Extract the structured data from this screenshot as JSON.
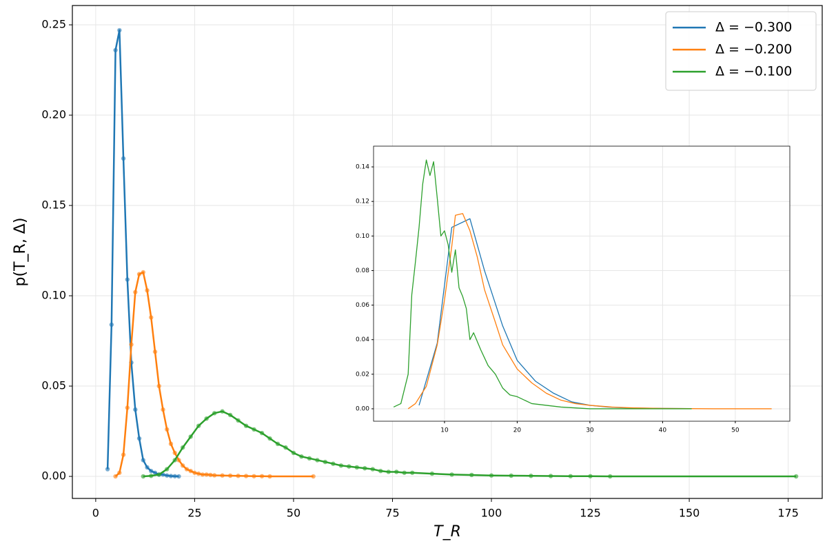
{
  "chart_data": [
    {
      "type": "line",
      "xlabel": "T_R",
      "ylabel": "p(T_R, Δ)",
      "xlim": [
        -5.9,
        183.6
      ],
      "ylim": [
        -0.0122,
        0.2607
      ],
      "xticks": [
        0,
        25,
        50,
        75,
        100,
        125,
        150,
        175
      ],
      "yticks": [
        {
          "value": 0,
          "label": "0.00"
        },
        0.05,
        {
          "value": 0.1,
          "label": "0.10"
        },
        0.15,
        {
          "value": 0.2,
          "label": "0.20"
        },
        0.25
      ],
      "grid": true,
      "markers": true,
      "legend": "upper right",
      "series": [
        {
          "name": "Δ = −0.300",
          "color": "#1f77b4",
          "x": [
            3,
            4,
            5,
            6,
            7,
            8,
            9,
            10,
            11,
            12,
            13,
            14,
            15,
            16,
            17,
            18,
            19,
            20,
            21
          ],
          "values": [
            0.004,
            0.084,
            0.236,
            0.247,
            0.176,
            0.109,
            0.063,
            0.037,
            0.021,
            0.009,
            0.005,
            0.003,
            0.002,
            0.001,
            0.001,
            0.0005,
            0.0002,
            0.0001,
            0
          ]
        },
        {
          "name": "Δ = −0.200",
          "color": "#ff7f0e",
          "x": [
            5,
            6,
            7,
            8,
            9,
            10,
            11,
            12,
            13,
            14,
            15,
            16,
            17,
            18,
            19,
            20,
            21,
            22,
            23,
            24,
            25,
            26,
            27,
            28,
            29,
            30,
            32,
            34,
            36,
            38,
            40,
            42,
            44,
            55
          ],
          "values": [
            0,
            0.002,
            0.012,
            0.038,
            0.073,
            0.102,
            0.112,
            0.113,
            0.103,
            0.088,
            0.069,
            0.05,
            0.037,
            0.026,
            0.018,
            0.013,
            0.009,
            0.006,
            0.004,
            0.003,
            0.002,
            0.0015,
            0.001,
            0.001,
            0.0008,
            0.0006,
            0.0005,
            0.0004,
            0.0003,
            0.0002,
            0.0001,
            0.0001,
            0,
            0
          ]
        },
        {
          "name": "Δ = −0.100",
          "color": "#2ca02c",
          "x": [
            12,
            14,
            16,
            18,
            20,
            22,
            24,
            26,
            28,
            30,
            32,
            34,
            36,
            38,
            40,
            42,
            44,
            46,
            48,
            50,
            52,
            54,
            56,
            58,
            60,
            62,
            64,
            66,
            68,
            70,
            72,
            74,
            76,
            78,
            80,
            85,
            90,
            95,
            100,
            105,
            110,
            115,
            120,
            125,
            130,
            177
          ],
          "values": [
            0,
            0.0003,
            0.001,
            0.004,
            0.009,
            0.016,
            0.022,
            0.028,
            0.032,
            0.035,
            0.036,
            0.034,
            0.031,
            0.028,
            0.026,
            0.024,
            0.021,
            0.018,
            0.016,
            0.013,
            0.011,
            0.01,
            0.009,
            0.008,
            0.007,
            0.006,
            0.0055,
            0.005,
            0.0045,
            0.004,
            0.003,
            0.0025,
            0.0025,
            0.002,
            0.002,
            0.0015,
            0.001,
            0.0008,
            0.0005,
            0.0004,
            0.0003,
            0.0002,
            0.0001,
            0.0001,
            0,
            0
          ]
        }
      ]
    },
    {
      "type": "line",
      "xlim": [
        0.24,
        57.5
      ],
      "ylim": [
        -0.0072,
        0.152
      ],
      "xticks": [
        10,
        20,
        30,
        40,
        50
      ],
      "yticks": [
        {
          "value": 0,
          "label": "0.00"
        },
        0.02,
        0.04,
        0.06,
        0.08,
        {
          "value": 0.1,
          "label": "0.10"
        },
        0.12,
        0.14
      ],
      "grid": true,
      "markers": false,
      "series": [
        {
          "color": "#1f77b4",
          "x": [
            6.5,
            9,
            11,
            13.5,
            15.5,
            18,
            20,
            22.5,
            25,
            27.5,
            30,
            32.5,
            35,
            40,
            44
          ],
          "values": [
            0.002,
            0.038,
            0.105,
            0.11,
            0.08,
            0.048,
            0.028,
            0.016,
            0.009,
            0.004,
            0.002,
            0.001,
            0.0005,
            0.0002,
            0.0001
          ]
        },
        {
          "color": "#ff7f0e",
          "x": [
            5,
            6,
            7.5,
            9,
            10,
            11,
            11.5,
            12.5,
            13.5,
            14.5,
            15.5,
            17,
            18,
            19,
            20,
            22,
            24,
            26,
            28,
            30,
            33,
            36,
            40,
            47,
            55
          ],
          "values": [
            0,
            0.003,
            0.013,
            0.037,
            0.063,
            0.094,
            0.112,
            0.113,
            0.103,
            0.088,
            0.069,
            0.05,
            0.037,
            0.03,
            0.023,
            0.015,
            0.009,
            0.005,
            0.003,
            0.002,
            0.001,
            0.0005,
            0.0002,
            0,
            0
          ]
        },
        {
          "color": "#2ca02c",
          "x": [
            3,
            4,
            5,
            5.5,
            6,
            6.5,
            7,
            7.5,
            8,
            8.5,
            9,
            9.5,
            10,
            10.5,
            11,
            11.5,
            12,
            12.5,
            13,
            13.5,
            14,
            15,
            16,
            17,
            18,
            19,
            20,
            21,
            22,
            24,
            26,
            28,
            30,
            44
          ],
          "values": [
            0.001,
            0.003,
            0.02,
            0.066,
            0.085,
            0.105,
            0.13,
            0.144,
            0.135,
            0.143,
            0.122,
            0.1,
            0.103,
            0.095,
            0.079,
            0.092,
            0.07,
            0.065,
            0.058,
            0.04,
            0.044,
            0.034,
            0.025,
            0.02,
            0.012,
            0.008,
            0.007,
            0.005,
            0.003,
            0.002,
            0.001,
            0.0005,
            0,
            0
          ]
        }
      ]
    }
  ]
}
